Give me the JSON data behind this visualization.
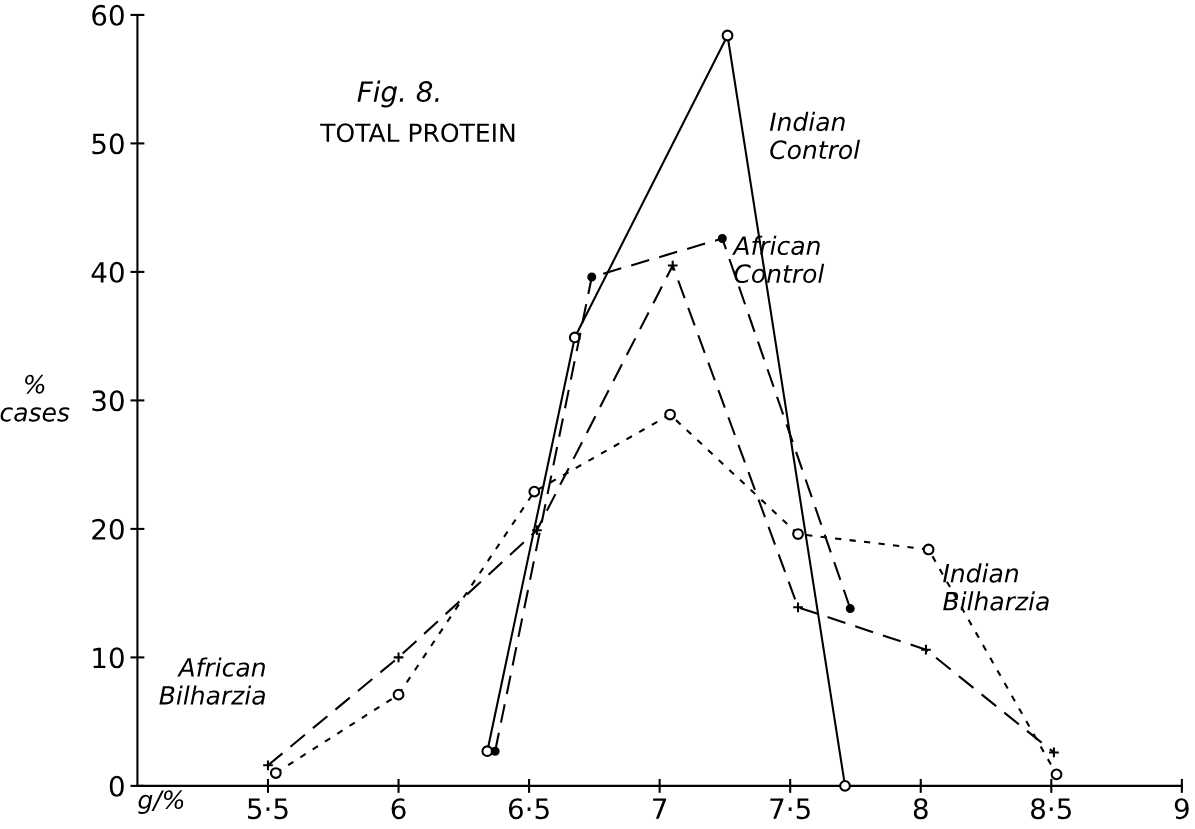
{
  "chart_data": {
    "type": "line",
    "title": "Fig. 8.",
    "subtitle": "TOTAL PROTEIN",
    "xlabel": "g/%",
    "ylabel": "%\ncases",
    "xlim": [
      5,
      9
    ],
    "ylim": [
      0,
      60
    ],
    "xticks": [
      {
        "value": 5.5,
        "label": "5·5"
      },
      6,
      {
        "value": 6.5,
        "label": "6·5"
      },
      7,
      {
        "value": 7.5,
        "label": "7·5"
      },
      8,
      {
        "value": 8.5,
        "label": "8·5"
      },
      9
    ],
    "yticks": [
      0,
      10,
      20,
      30,
      40,
      50,
      60
    ],
    "grid": false,
    "legend": false,
    "series": [
      {
        "name": "Indian\nControl",
        "color": "#000000",
        "line_style": "solid",
        "marker": "circle",
        "x": [
          6.34,
          6.675,
          7.26,
          7.71
        ],
        "values": [
          2.7,
          34.9,
          58.4,
          0
        ]
      },
      {
        "name": "African\nControl",
        "color": "#000000",
        "line_style": "dashed",
        "marker": "circle",
        "x": [
          6.37,
          6.74,
          7.24,
          7.73
        ],
        "values": [
          2.7,
          39.6,
          42.6,
          13.8
        ]
      },
      {
        "name": "Indian\nBilharzia",
        "color": "#000000",
        "line_style": "dotted",
        "marker": "circle",
        "x": [
          5.53,
          6.0,
          6.52,
          7.04,
          7.53,
          8.03,
          8.52
        ],
        "values": [
          1.0,
          7.1,
          22.9,
          28.9,
          19.6,
          18.4,
          0.9
        ]
      },
      {
        "name": "African\nBilharzia",
        "color": "#000000",
        "line_style": "dashed",
        "marker": "cross",
        "x": [
          5.5,
          6.0,
          6.53,
          7.05,
          7.53,
          8.02,
          8.51
        ],
        "values": [
          1.6,
          10.0,
          19.9,
          40.5,
          13.9,
          10.6,
          2.6
        ]
      }
    ]
  }
}
